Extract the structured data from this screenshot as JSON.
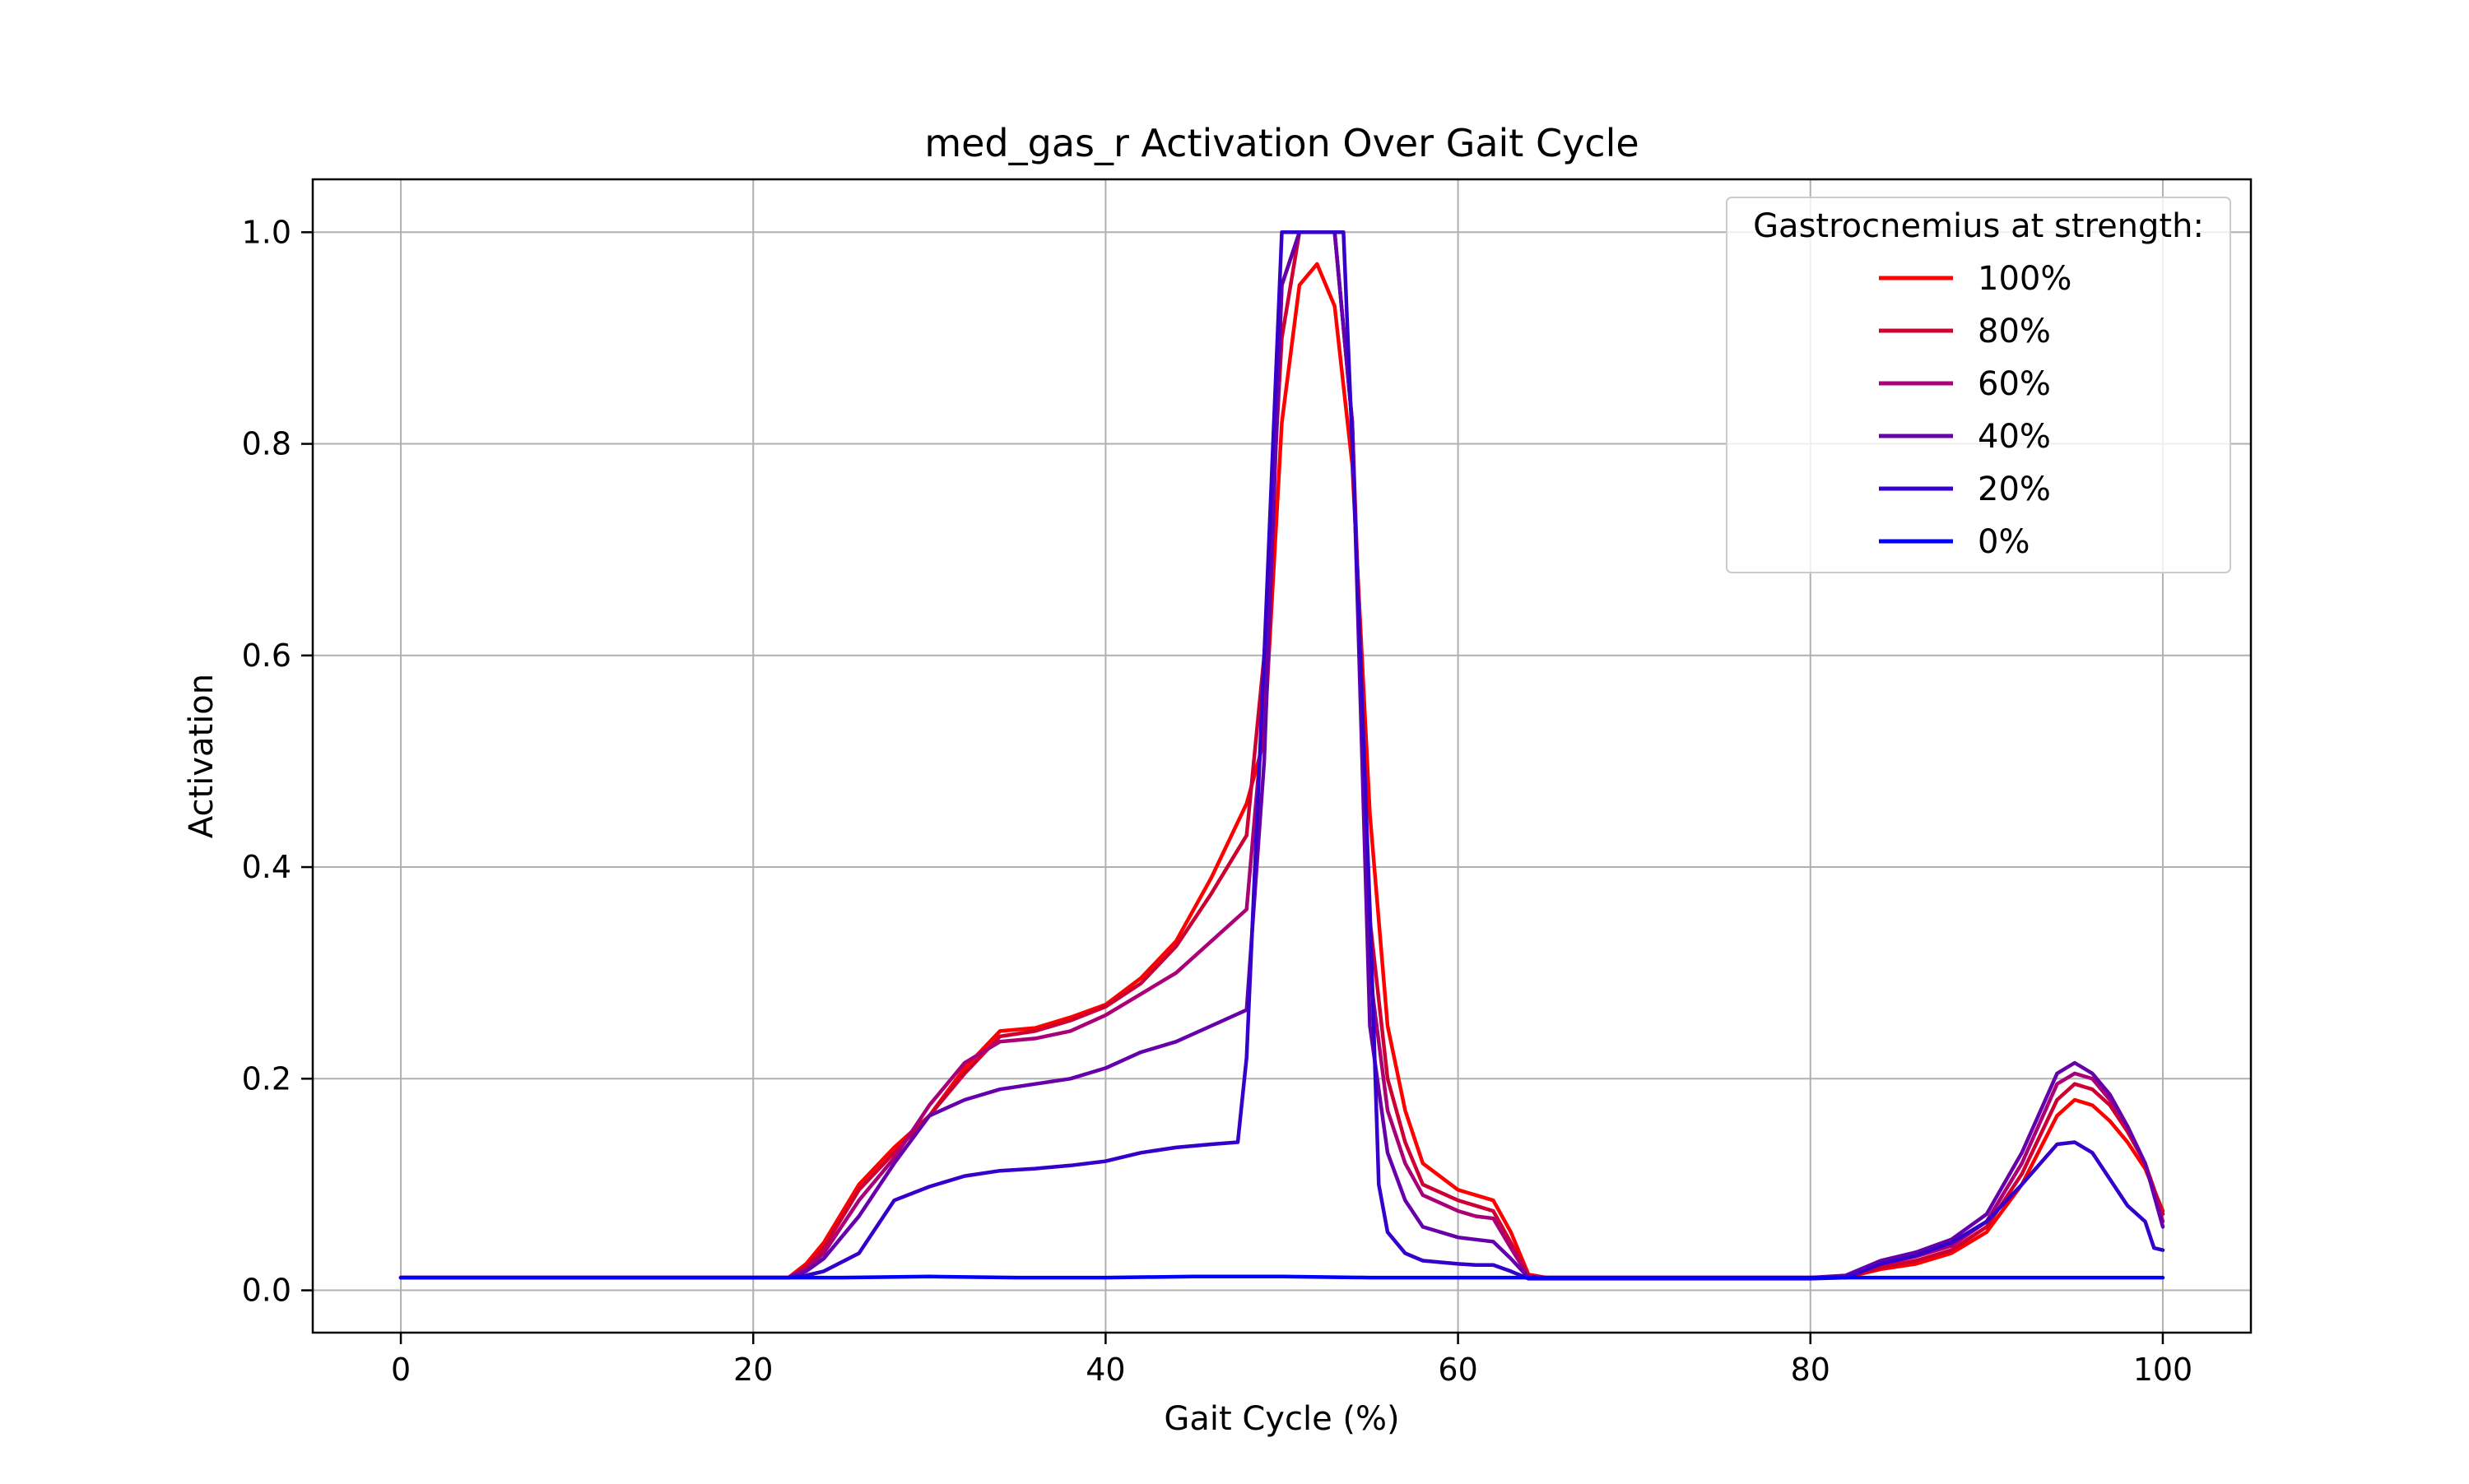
{
  "chart_data": {
    "type": "line",
    "title": "med_gas_r Activation Over Gait Cycle",
    "xlabel": "Gait Cycle (%)",
    "ylabel": "Activation",
    "xlim": [
      -5,
      105
    ],
    "ylim": [
      -0.04,
      1.05
    ],
    "xticks": [
      0,
      20,
      40,
      60,
      80,
      100
    ],
    "xtick_labels": [
      "0",
      "20",
      "40",
      "60",
      "80",
      "100"
    ],
    "yticks": [
      0.0,
      0.2,
      0.4,
      0.6,
      0.8,
      1.0
    ],
    "ytick_labels": [
      "0.0",
      "0.2",
      "0.4",
      "0.6",
      "0.8",
      "1.0"
    ],
    "grid": true,
    "legend": {
      "title": "Gastrocnemius at strength:",
      "location": "top-right"
    },
    "series": [
      {
        "name": "100%",
        "color": "#ff0000",
        "x": [
          0,
          10,
          20,
          22,
          23,
          24,
          26,
          28,
          30,
          32,
          34,
          36,
          38,
          40,
          42,
          44,
          46,
          48,
          49,
          50,
          51,
          52,
          53,
          54,
          55,
          56,
          57,
          58,
          60,
          61,
          62,
          63,
          64,
          65,
          70,
          80,
          82,
          84,
          86,
          88,
          90,
          92,
          94,
          95,
          96,
          97,
          98,
          99,
          100
        ],
        "y": [
          0.012,
          0.012,
          0.012,
          0.012,
          0.025,
          0.045,
          0.1,
          0.135,
          0.165,
          0.21,
          0.245,
          0.248,
          0.258,
          0.27,
          0.295,
          0.33,
          0.39,
          0.46,
          0.52,
          0.82,
          0.95,
          0.97,
          0.93,
          0.78,
          0.45,
          0.25,
          0.17,
          0.12,
          0.095,
          0.09,
          0.085,
          0.055,
          0.015,
          0.012,
          0.012,
          0.012,
          0.012,
          0.02,
          0.025,
          0.035,
          0.055,
          0.1,
          0.165,
          0.18,
          0.175,
          0.16,
          0.14,
          0.115,
          0.075
        ]
      },
      {
        "name": "80%",
        "color": "#cc0033",
        "x": [
          0,
          10,
          20,
          22,
          23,
          24,
          26,
          28,
          30,
          32,
          34,
          36,
          38,
          40,
          42,
          44,
          46,
          48,
          49,
          50,
          51,
          52,
          53,
          54,
          55,
          56,
          57,
          58,
          60,
          61,
          62,
          63,
          64,
          65,
          70,
          80,
          82,
          84,
          86,
          88,
          90,
          92,
          94,
          95,
          96,
          97,
          98,
          99,
          100
        ],
        "y": [
          0.012,
          0.012,
          0.012,
          0.012,
          0.022,
          0.04,
          0.095,
          0.13,
          0.165,
          0.205,
          0.24,
          0.245,
          0.255,
          0.268,
          0.29,
          0.325,
          0.375,
          0.43,
          0.6,
          0.9,
          1.0,
          1.0,
          1.0,
          0.82,
          0.35,
          0.2,
          0.14,
          0.1,
          0.085,
          0.08,
          0.075,
          0.045,
          0.013,
          0.012,
          0.012,
          0.012,
          0.012,
          0.022,
          0.028,
          0.038,
          0.06,
          0.11,
          0.18,
          0.195,
          0.19,
          0.175,
          0.15,
          0.12,
          0.072
        ]
      },
      {
        "name": "60%",
        "color": "#aa0077",
        "x": [
          0,
          10,
          20,
          22,
          23,
          24,
          26,
          28,
          30,
          32,
          34,
          36,
          38,
          40,
          42,
          44,
          46,
          48,
          49,
          50,
          51,
          52,
          53,
          54,
          55,
          56,
          57,
          58,
          60,
          61,
          62,
          63,
          64,
          65,
          70,
          80,
          82,
          84,
          86,
          88,
          90,
          92,
          94,
          95,
          96,
          97,
          98,
          99,
          100
        ],
        "y": [
          0.012,
          0.012,
          0.012,
          0.012,
          0.02,
          0.035,
          0.085,
          0.125,
          0.175,
          0.215,
          0.235,
          0.238,
          0.245,
          0.26,
          0.28,
          0.3,
          0.33,
          0.36,
          0.55,
          0.95,
          1.0,
          1.0,
          1.0,
          0.82,
          0.3,
          0.17,
          0.12,
          0.09,
          0.075,
          0.07,
          0.068,
          0.04,
          0.013,
          0.012,
          0.012,
          0.012,
          0.012,
          0.025,
          0.032,
          0.042,
          0.065,
          0.12,
          0.195,
          0.205,
          0.2,
          0.18,
          0.155,
          0.12,
          0.065
        ]
      },
      {
        "name": "40%",
        "color": "#6600aa",
        "x": [
          0,
          10,
          20,
          22,
          23,
          24,
          26,
          28,
          30,
          32,
          34,
          36,
          38,
          40,
          42,
          44,
          46,
          48,
          49,
          50,
          51,
          52,
          53,
          54,
          55,
          56,
          57,
          58,
          60,
          61,
          62,
          63,
          64,
          65,
          70,
          80,
          82,
          84,
          86,
          88,
          90,
          92,
          94,
          95,
          96,
          97,
          98,
          99,
          100
        ],
        "y": [
          0.012,
          0.012,
          0.012,
          0.012,
          0.018,
          0.03,
          0.07,
          0.12,
          0.165,
          0.18,
          0.19,
          0.195,
          0.2,
          0.21,
          0.225,
          0.235,
          0.25,
          0.265,
          0.5,
          0.95,
          1.0,
          1.0,
          1.0,
          0.82,
          0.25,
          0.13,
          0.085,
          0.06,
          0.05,
          0.048,
          0.046,
          0.03,
          0.012,
          0.012,
          0.012,
          0.012,
          0.014,
          0.028,
          0.036,
          0.048,
          0.072,
          0.13,
          0.205,
          0.215,
          0.205,
          0.185,
          0.155,
          0.12,
          0.06
        ]
      },
      {
        "name": "20%",
        "color": "#3300cc",
        "x": [
          0,
          10,
          20,
          22,
          23,
          24,
          26,
          28,
          30,
          32,
          34,
          36,
          38,
          40,
          42,
          44,
          46,
          47.5,
          48,
          49,
          50,
          51,
          52,
          53,
          53.5,
          54,
          55,
          55.5,
          56,
          57,
          58,
          60,
          61,
          62,
          63,
          64,
          65,
          70,
          80,
          82,
          84,
          86,
          88,
          90,
          92,
          94,
          95,
          96,
          97,
          98,
          99,
          99.5,
          100
        ],
        "y": [
          0.012,
          0.012,
          0.012,
          0.012,
          0.014,
          0.018,
          0.035,
          0.085,
          0.098,
          0.108,
          0.113,
          0.115,
          0.118,
          0.122,
          0.13,
          0.135,
          0.138,
          0.14,
          0.22,
          0.6,
          1.0,
          1.0,
          1.0,
          1.0,
          1.0,
          0.8,
          0.36,
          0.1,
          0.055,
          0.035,
          0.028,
          0.025,
          0.024,
          0.024,
          0.018,
          0.011,
          0.011,
          0.011,
          0.011,
          0.012,
          0.025,
          0.033,
          0.045,
          0.065,
          0.1,
          0.138,
          0.14,
          0.13,
          0.105,
          0.08,
          0.065,
          0.04,
          0.038
        ]
      },
      {
        "name": "0%",
        "color": "#0000ff",
        "x": [
          0,
          5,
          10,
          15,
          20,
          25,
          30,
          35,
          40,
          45,
          50,
          55,
          60,
          65,
          70,
          75,
          80,
          85,
          90,
          95,
          100
        ],
        "y": [
          0.012,
          0.012,
          0.012,
          0.012,
          0.012,
          0.012,
          0.013,
          0.012,
          0.012,
          0.013,
          0.013,
          0.012,
          0.012,
          0.012,
          0.012,
          0.012,
          0.012,
          0.012,
          0.012,
          0.012,
          0.012
        ]
      }
    ]
  }
}
